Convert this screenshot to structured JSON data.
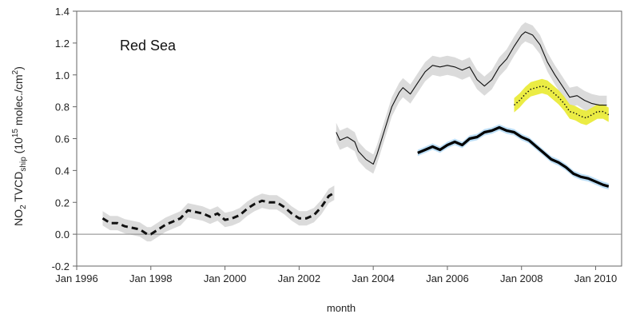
{
  "chart_data": {
    "type": "line",
    "annotation": "Red Sea",
    "xlabel": "month",
    "ylabel": {
      "base": "NO",
      "base_sub": "2",
      "mid": "TVCD",
      "mid_sub": "ship",
      "unit_open": "(10",
      "unit_sup": "15",
      "unit_mid": " molec./cm",
      "unit_sup2": "2",
      "unit_close": ")"
    },
    "xlim": [
      1996.0,
      2010.7
    ],
    "ylim": [
      -0.2,
      1.4
    ],
    "x_ticks": [
      {
        "x": 1996.0,
        "label": "Jan 1996"
      },
      {
        "x": 1998.0,
        "label": "Jan 1998"
      },
      {
        "x": 2000.0,
        "label": "Jan 2000"
      },
      {
        "x": 2002.0,
        "label": "Jan 2002"
      },
      {
        "x": 2004.0,
        "label": "Jan 2004"
      },
      {
        "x": 2006.0,
        "label": "Jan 2006"
      },
      {
        "x": 2008.0,
        "label": "Jan 2008"
      },
      {
        "x": 2010.0,
        "label": "Jan 2010"
      }
    ],
    "y_ticks": [
      {
        "y": -0.2,
        "label": "-0.2"
      },
      {
        "y": 0.0,
        "label": "0.0"
      },
      {
        "y": 0.2,
        "label": "0.2"
      },
      {
        "y": 0.4,
        "label": "0.4"
      },
      {
        "y": 0.6,
        "label": "0.6"
      },
      {
        "y": 0.8,
        "label": "0.8"
      },
      {
        "y": 1.0,
        "label": "1.0"
      },
      {
        "y": 1.2,
        "label": "1.2"
      },
      {
        "y": 1.4,
        "label": "1.4"
      }
    ],
    "zero_line": true,
    "series": [
      {
        "style": "dashed-thick",
        "color": "#111111",
        "band_color": "#d9d9d9",
        "band_half_width": 0.045,
        "x": [
          1996.7,
          1996.9,
          1997.1,
          1997.3,
          1997.5,
          1997.7,
          1997.9,
          1998.0,
          1998.2,
          1998.4,
          1998.6,
          1998.8,
          1999.0,
          1999.2,
          1999.4,
          1999.6,
          1999.8,
          2000.0,
          2000.2,
          2000.4,
          2000.6,
          2000.8,
          2001.0,
          2001.2,
          2001.4,
          2001.6,
          2001.8,
          2002.0,
          2002.2,
          2002.4,
          2002.6,
          2002.8,
          2002.95
        ],
        "y": [
          0.1,
          0.07,
          0.07,
          0.05,
          0.04,
          0.03,
          0.0,
          0.0,
          0.03,
          0.06,
          0.08,
          0.1,
          0.15,
          0.14,
          0.13,
          0.11,
          0.13,
          0.09,
          0.1,
          0.12,
          0.16,
          0.19,
          0.21,
          0.2,
          0.2,
          0.17,
          0.13,
          0.1,
          0.1,
          0.12,
          0.17,
          0.24,
          0.26
        ]
      },
      {
        "style": "solid-thin",
        "color": "#111111",
        "band_color": "#d9d9d9",
        "band_half_width": 0.06,
        "x": [
          2003.0,
          2003.1,
          2003.3,
          2003.5,
          2003.6,
          2003.8,
          2004.0,
          2004.1,
          2004.3,
          2004.5,
          2004.7,
          2004.8,
          2005.0,
          2005.2,
          2005.4,
          2005.6,
          2005.8,
          2006.0,
          2006.2,
          2006.4,
          2006.6,
          2006.8,
          2007.0,
          2007.2,
          2007.4,
          2007.6,
          2007.8,
          2008.0,
          2008.1,
          2008.3,
          2008.5,
          2008.7,
          2008.9,
          2009.1,
          2009.3,
          2009.5,
          2009.7,
          2009.9,
          2010.1,
          2010.3
        ],
        "y": [
          0.64,
          0.59,
          0.61,
          0.58,
          0.52,
          0.47,
          0.44,
          0.5,
          0.65,
          0.8,
          0.89,
          0.92,
          0.88,
          0.95,
          1.02,
          1.06,
          1.05,
          1.06,
          1.05,
          1.03,
          1.05,
          0.97,
          0.93,
          0.97,
          1.05,
          1.1,
          1.18,
          1.25,
          1.27,
          1.25,
          1.19,
          1.08,
          1.0,
          0.93,
          0.86,
          0.87,
          0.84,
          0.82,
          0.81,
          0.81
        ]
      },
      {
        "style": "solid-thick",
        "color": "#000000",
        "band_color": "#b8dcf5",
        "band_half_width": 0.02,
        "x": [
          2005.2,
          2005.4,
          2005.6,
          2005.8,
          2006.0,
          2006.2,
          2006.4,
          2006.6,
          2006.8,
          2007.0,
          2007.2,
          2007.4,
          2007.6,
          2007.8,
          2008.0,
          2008.2,
          2008.4,
          2008.6,
          2008.8,
          2009.0,
          2009.2,
          2009.4,
          2009.6,
          2009.8,
          2010.0,
          2010.2,
          2010.35
        ],
        "y": [
          0.51,
          0.53,
          0.55,
          0.53,
          0.56,
          0.58,
          0.56,
          0.6,
          0.61,
          0.64,
          0.65,
          0.67,
          0.65,
          0.64,
          0.61,
          0.59,
          0.55,
          0.51,
          0.47,
          0.45,
          0.42,
          0.38,
          0.36,
          0.35,
          0.33,
          0.31,
          0.3
        ]
      },
      {
        "style": "dotted",
        "color": "#111111",
        "band_color": "#eaeb3a",
        "band_half_width": 0.045,
        "x": [
          2007.8,
          2007.95,
          2008.1,
          2008.25,
          2008.4,
          2008.55,
          2008.7,
          2008.85,
          2009.0,
          2009.15,
          2009.3,
          2009.45,
          2009.6,
          2009.75,
          2009.9,
          2010.05,
          2010.2,
          2010.35
        ],
        "y": [
          0.81,
          0.84,
          0.88,
          0.91,
          0.92,
          0.93,
          0.92,
          0.89,
          0.86,
          0.82,
          0.77,
          0.76,
          0.74,
          0.73,
          0.75,
          0.77,
          0.77,
          0.75
        ]
      }
    ]
  }
}
